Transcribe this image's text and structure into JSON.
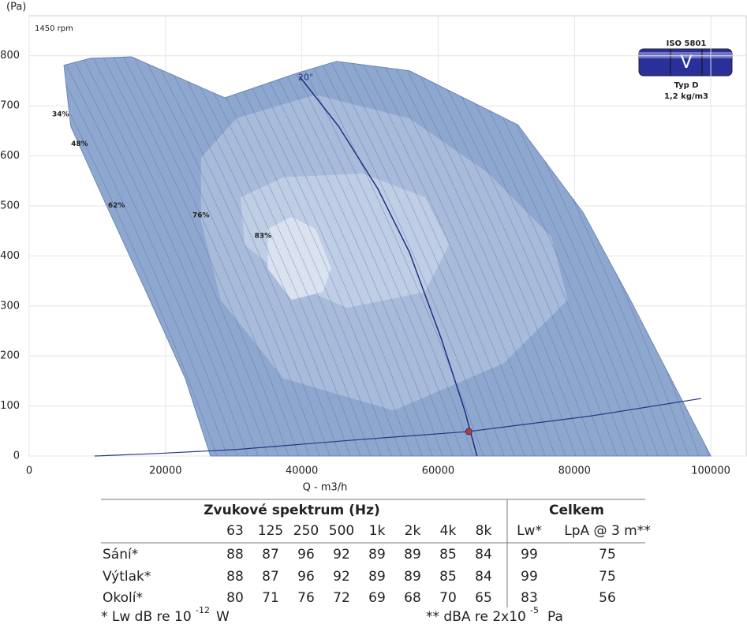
{
  "chart_data": {
    "type": "fan-curve",
    "ylabel": "(Pa)",
    "xlabel": "Q - m3/h",
    "annotation": "1450 rpm",
    "xlim": [
      0,
      105200
    ],
    "ylim": [
      0,
      880
    ],
    "xticks": [
      0,
      20000,
      40000,
      60000,
      80000,
      100000
    ],
    "yticks": [
      0,
      100,
      200,
      300,
      400,
      500,
      600,
      700,
      800
    ],
    "grid": true,
    "envelope": {
      "color": "#8ea7cf",
      "x": [
        5100,
        9000,
        15000,
        28700,
        39700,
        45100,
        55800,
        71700,
        81300,
        88200,
        100000,
        26600,
        22900,
        17700,
        10800,
        6100
      ],
      "y": [
        781,
        795,
        798,
        716,
        767,
        789,
        770,
        662,
        486,
        312,
        0,
        0,
        155,
        312,
        517,
        659
      ]
    },
    "zones": [
      {
        "color": "#a8bbdb",
        "x": [
          25200,
          30400,
          42000,
          55800,
          67400,
          76600,
          79000,
          69700,
          53500,
          37300,
          28100,
          25200
        ],
        "y": [
          596,
          675,
          722,
          675,
          565,
          438,
          312,
          186,
          91,
          155,
          312,
          470
        ]
      },
      {
        "color": "#bfcde5",
        "x": [
          31000,
          37300,
          48900,
          58100,
          61600,
          58100,
          46600,
          38500,
          31600
        ],
        "y": [
          517,
          557,
          565,
          517,
          423,
          328,
          296,
          344,
          423
        ]
      },
      {
        "color": "#dae2f0",
        "x": [
          35000,
          38500,
          42000,
          44300,
          43100,
          38500,
          35000
        ],
        "y": [
          454,
          478,
          454,
          375,
          328,
          312,
          375
        ]
      }
    ],
    "efficiency_labels": [
      {
        "label": "34%",
        "x": 4600,
        "y": 683
      },
      {
        "label": "48%",
        "x": 7400,
        "y": 624
      },
      {
        "label": "62%",
        "x": 12800,
        "y": 501
      },
      {
        "label": "76%",
        "x": 25200,
        "y": 481
      },
      {
        "label": "83%",
        "x": 34300,
        "y": 440
      }
    ],
    "blade_line": {
      "name": "20°",
      "color": "#1f2f80",
      "x": [
        39650,
        45400,
        51200,
        55800,
        60500,
        63900,
        65700
      ],
      "y": [
        759,
        659,
        533,
        407,
        233,
        91,
        0
      ]
    },
    "system_curve": {
      "color": "#2a3585",
      "x": [
        9600,
        18800,
        30400,
        47700,
        64500,
        82400,
        98600
      ],
      "y": [
        0,
        5,
        13,
        32,
        49,
        80,
        115
      ]
    },
    "operating_point": {
      "x": 64500,
      "y": 49,
      "color": "#c0392b"
    }
  },
  "badge": {
    "standard": "ISO 5801",
    "letter": "V",
    "type": "Typ D",
    "density": "1,2 kg/m3"
  },
  "table": {
    "spectrum_header": "Zvukové spektrum (Hz)",
    "total_header": "Celkem",
    "columns": [
      "63",
      "125",
      "250",
      "500",
      "1k",
      "2k",
      "4k",
      "8k",
      "Lw*",
      "LpA @ 3 m**"
    ],
    "rows": [
      {
        "label": "Sání*",
        "values": [
          88,
          87,
          96,
          92,
          89,
          89,
          85,
          84,
          99,
          75
        ]
      },
      {
        "label": "Výtlak*",
        "values": [
          88,
          87,
          96,
          92,
          89,
          89,
          85,
          84,
          99,
          75
        ]
      },
      {
        "label": "Okolí*",
        "values": [
          80,
          71,
          76,
          72,
          69,
          68,
          70,
          65,
          83,
          56
        ]
      }
    ],
    "footnote1": {
      "text": "* Lw dB re 10",
      "exp": "-12",
      "unit": "W"
    },
    "footnote2": {
      "text": "** dBA re 2x10",
      "exp": "-5",
      "unit": "Pa"
    }
  }
}
